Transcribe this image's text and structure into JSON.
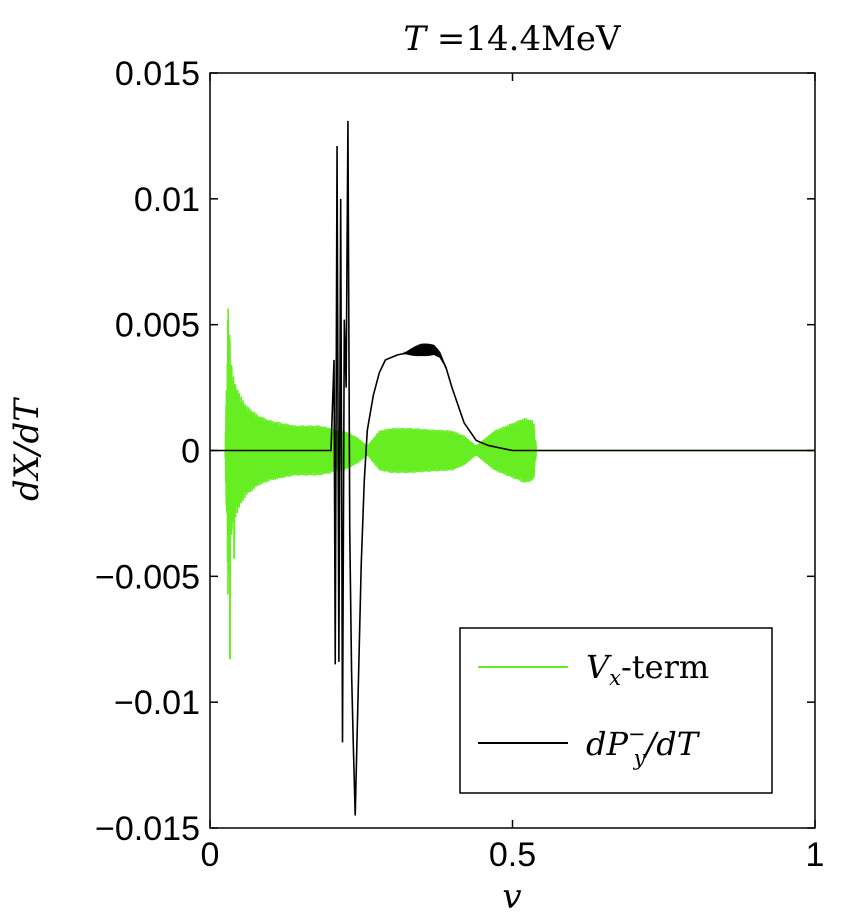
{
  "chart_data": {
    "type": "line",
    "title": "T =14.4MeV",
    "xlabel": "v",
    "ylabel": "dX/dT",
    "xlim": [
      0,
      1
    ],
    "ylim": [
      -0.015,
      0.015
    ],
    "xticks": [
      0,
      0.5,
      1
    ],
    "xtick_labels": [
      "0",
      "0.5",
      "1"
    ],
    "yticks": [
      0.015,
      0.01,
      0.005,
      0,
      -0.005,
      -0.01,
      -0.015
    ],
    "ytick_labels": [
      "0.015",
      "0.01",
      "0.005",
      "0",
      "−0.005",
      "−0.01",
      "−0.015"
    ],
    "grid": false,
    "legend_position": "bottom-right",
    "series": [
      {
        "name": "Vx-term",
        "color": "#66ee22",
        "style": "oscillating",
        "x": [
          0.025,
          0.03,
          0.035,
          0.04,
          0.05,
          0.06,
          0.08,
          0.1,
          0.12,
          0.14,
          0.16,
          0.18,
          0.2,
          0.21,
          0.22,
          0.23,
          0.245,
          0.26,
          0.27,
          0.28,
          0.3,
          0.33,
          0.36,
          0.4,
          0.42,
          0.44,
          0.45,
          0.46,
          0.47,
          0.48,
          0.5,
          0.52,
          0.535,
          0.54,
          1.0
        ],
        "envelope": [
          0.0,
          0.006,
          0.0035,
          0.0028,
          0.0022,
          0.0018,
          0.0014,
          0.0012,
          0.0011,
          0.001,
          0.001,
          0.001,
          0.0009,
          0.0008,
          0.0008,
          0.0007,
          0.0005,
          0.0002,
          0.0005,
          0.0008,
          0.0009,
          0.0009,
          0.00085,
          0.0008,
          0.0006,
          0.0002,
          0.0004,
          0.0006,
          0.0008,
          0.0009,
          0.0011,
          0.0013,
          0.0012,
          0.0,
          0.0
        ],
        "highlights": [
          {
            "x": 0.033,
            "y": -0.0083
          },
          {
            "x": 0.035,
            "y": 0.0034
          },
          {
            "x": 0.04,
            "y": -0.0043
          },
          {
            "x": 0.045,
            "y": 0.0024
          }
        ]
      },
      {
        "name": "dP_y^-/dT",
        "color": "#000000",
        "style": "line",
        "x": [
          0.0,
          0.2,
          0.205,
          0.207,
          0.21,
          0.213,
          0.216,
          0.219,
          0.222,
          0.225,
          0.228,
          0.231,
          0.234,
          0.237,
          0.24,
          0.243,
          0.246,
          0.25,
          0.255,
          0.26,
          0.27,
          0.28,
          0.29,
          0.3,
          0.31,
          0.33,
          0.35,
          0.37,
          0.38,
          0.39,
          0.4,
          0.42,
          0.44,
          0.46,
          0.48,
          0.5,
          0.52,
          0.55,
          1.0
        ],
        "y": [
          0.0,
          0.0,
          0.0036,
          -0.0085,
          0.0121,
          -0.0084,
          0.01,
          -0.0116,
          0.0052,
          0.0025,
          0.0131,
          -0.0032,
          -0.0088,
          -0.0118,
          -0.0145,
          -0.0115,
          -0.0085,
          -0.0045,
          -0.0012,
          0.0008,
          0.0022,
          0.0031,
          0.0036,
          0.0037,
          0.0038,
          0.0039,
          0.004,
          0.004,
          0.0038,
          0.0033,
          0.0025,
          0.0011,
          0.0004,
          0.0002,
          0.0001,
          0.0,
          0.0,
          0.0,
          0.0
        ],
        "band": {
          "x": [
            0.32,
            0.39
          ],
          "half_width": 0.00025
        }
      }
    ],
    "legend": [
      {
        "label": "V_x-term",
        "color": "#66ee22"
      },
      {
        "label": "dP_y^-/dT",
        "color": "#000000"
      }
    ]
  }
}
